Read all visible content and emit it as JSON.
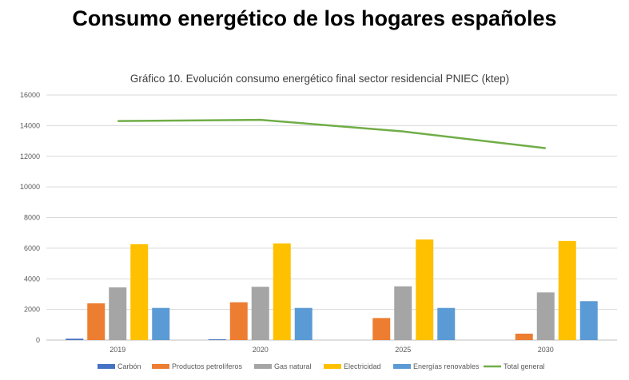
{
  "page_title": "Consumo energético de los hogares españoles",
  "chart_data": {
    "type": "bar",
    "title": "Gráfico 10. Evolución consumo energético final sector residencial PNIEC  (ktep)",
    "xlabel": "",
    "ylabel": "",
    "ylim": [
      0,
      16000
    ],
    "yticks": [
      "0",
      "2000",
      "4000",
      "6000",
      "8000",
      "10000",
      "12000",
      "14000",
      "16000"
    ],
    "grid": true,
    "legend_position": "bottom",
    "categories": [
      "2019",
      "2020",
      "2025",
      "2030"
    ],
    "series": [
      {
        "name": "Carbón",
        "type": "bar",
        "color": "#4472c4",
        "values": [
          90,
          50,
          0,
          0
        ]
      },
      {
        "name": "Productos petrolíferos",
        "type": "bar",
        "color": "#ed7d31",
        "values": [
          2400,
          2470,
          1440,
          420
        ]
      },
      {
        "name": "Gas natural",
        "type": "bar",
        "color": "#a5a5a5",
        "values": [
          3440,
          3480,
          3510,
          3110
        ]
      },
      {
        "name": "Electricidad",
        "type": "bar",
        "color": "#ffc000",
        "values": [
          6260,
          6310,
          6570,
          6470
        ]
      },
      {
        "name": "Energías renovables",
        "type": "bar",
        "color": "#5b9bd5",
        "values": [
          2100,
          2100,
          2100,
          2540
        ]
      },
      {
        "name": "Total general",
        "type": "line",
        "color": "#70ad47",
        "values": [
          14300,
          14380,
          13620,
          12530
        ]
      }
    ]
  }
}
